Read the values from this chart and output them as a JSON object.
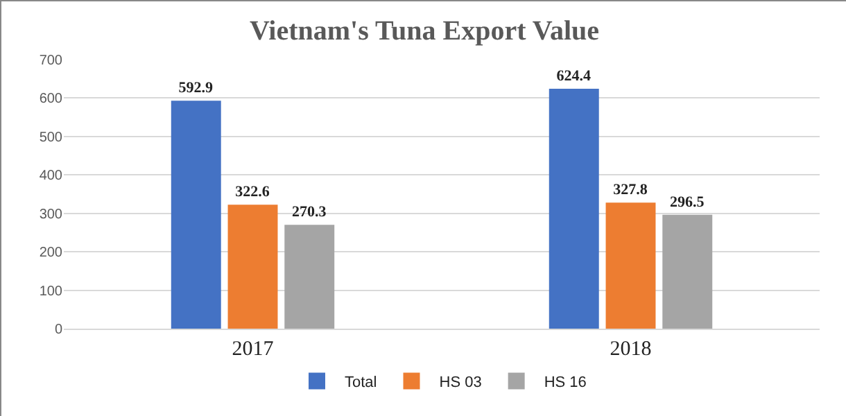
{
  "chart_data": {
    "type": "bar",
    "title": "Vietnam's Tuna Export Value",
    "categories": [
      "2017",
      "2018"
    ],
    "series": [
      {
        "name": "Total",
        "color": "#4472c4",
        "values": [
          592.9,
          624.4
        ]
      },
      {
        "name": "HS 03",
        "color": "#ed7d31",
        "values": [
          322.6,
          327.8
        ]
      },
      {
        "name": "HS 16",
        "color": "#a5a5a5",
        "values": [
          270.3,
          296.5
        ]
      }
    ],
    "ylim": [
      0,
      700
    ],
    "yticks": [
      0,
      100,
      200,
      300,
      400,
      500,
      600,
      700
    ],
    "grid": "y",
    "legend": "bottom",
    "data_labels": true
  }
}
